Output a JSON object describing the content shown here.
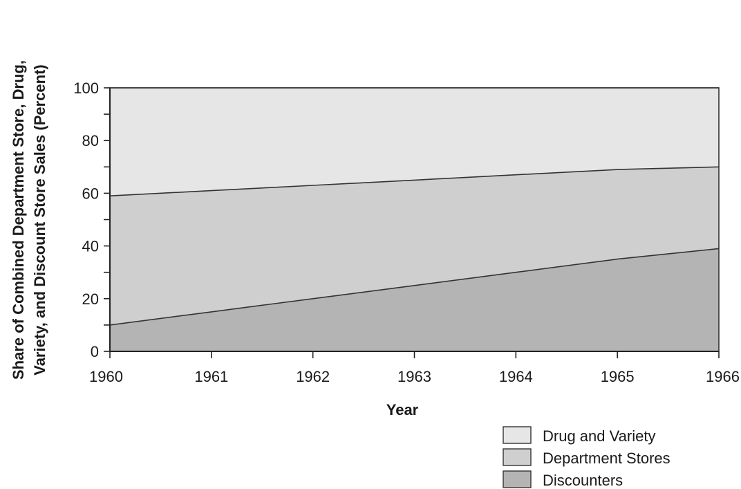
{
  "chart_data": {
    "type": "area",
    "stacked": true,
    "x": [
      1960,
      1961,
      1962,
      1963,
      1964,
      1965,
      1966
    ],
    "x_tick_labels": [
      "1960",
      "1961",
      "1962",
      "1963",
      "1964",
      "1965",
      "1966"
    ],
    "series": [
      {
        "name": "Discounters",
        "values": [
          10,
          15,
          20,
          25,
          30,
          35,
          39
        ],
        "color": "#b4b4b4"
      },
      {
        "name": "Department Stores",
        "values": [
          49,
          46,
          43,
          40,
          37,
          34,
          31
        ],
        "color": "#cfcfcf"
      },
      {
        "name": "Drug and Variety",
        "values": [
          41,
          39,
          37,
          35,
          33,
          31,
          30
        ],
        "color": "#e6e6e6"
      }
    ],
    "title": "",
    "xlabel": "Year",
    "ylabel_lines": [
      "Share of Combined Department Store, Drug,",
      "Variety, and Discount Store Sales (Percent)"
    ],
    "ylim": [
      0,
      100
    ],
    "y_ticks": [
      0,
      20,
      40,
      60,
      80,
      100
    ],
    "y_tick_labels": [
      "0",
      "20",
      "40",
      "60",
      "80",
      "100"
    ],
    "legend": {
      "placement": "bottom-right",
      "order": [
        "Drug and Variety",
        "Department Stores",
        "Discounters"
      ]
    },
    "grid": false
  }
}
